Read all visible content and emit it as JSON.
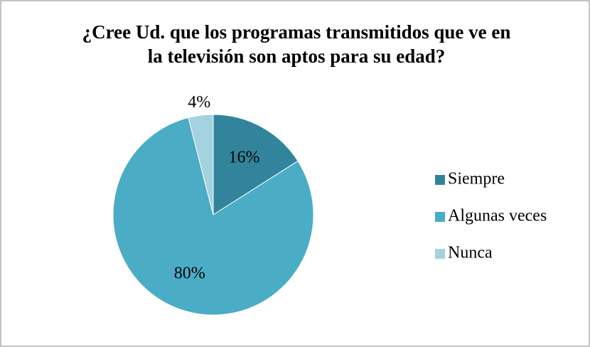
{
  "chart_data": {
    "type": "pie",
    "title": "¿Cree Ud. que los programas transmitidos que ve en la televisión son aptos para su edad?",
    "categories": [
      "Siempre",
      "Algunas veces",
      "Nunca"
    ],
    "values": [
      16,
      80,
      4
    ],
    "value_labels": [
      "16%",
      "80%",
      "4%"
    ],
    "colors": [
      "#31849b",
      "#4bacc6",
      "#a5d2df"
    ],
    "legend": "right"
  }
}
